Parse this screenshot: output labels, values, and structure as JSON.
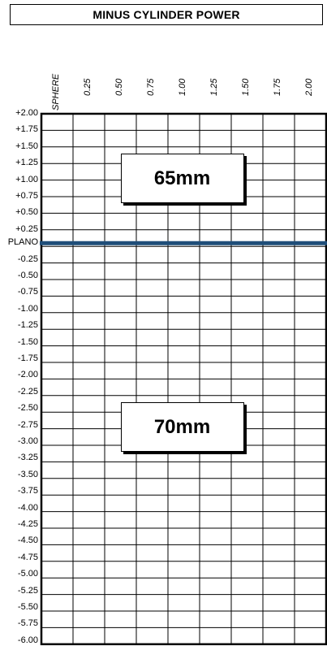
{
  "chart_data": {
    "type": "table",
    "title": "MINUS CYLINDER POWER",
    "column_labels": [
      "SPHERE",
      "0.25",
      "0.50",
      "0.75",
      "1.00",
      "1.25",
      "1.50",
      "1.75",
      "2.00"
    ],
    "row_labels": [
      "+2.00",
      "+1.75",
      "+1.50",
      "+1.25",
      "+1.00",
      "+0.75",
      "+0.50",
      "+0.25",
      "PLANO",
      "-0.25",
      "-0.50",
      "-0.75",
      "-1.00",
      "-1.25",
      "-1.50",
      "-1.75",
      "-2.00",
      "-2.25",
      "-2.50",
      "-2.75",
      "-3.00",
      "-3.25",
      "-3.50",
      "-3.75",
      "-4.00",
      "-4.25",
      "-4.50",
      "-4.75",
      "-5.00",
      "-5.25",
      "-5.50",
      "-5.75",
      "-6.00"
    ],
    "divider_at_row": "PLANO",
    "divider_color": "#1f4e79",
    "zones": [
      {
        "label": "65mm",
        "applies_to": "+0.25 to +2.00"
      },
      {
        "label": "70mm",
        "applies_to": "PLANO to -6.00"
      }
    ]
  }
}
